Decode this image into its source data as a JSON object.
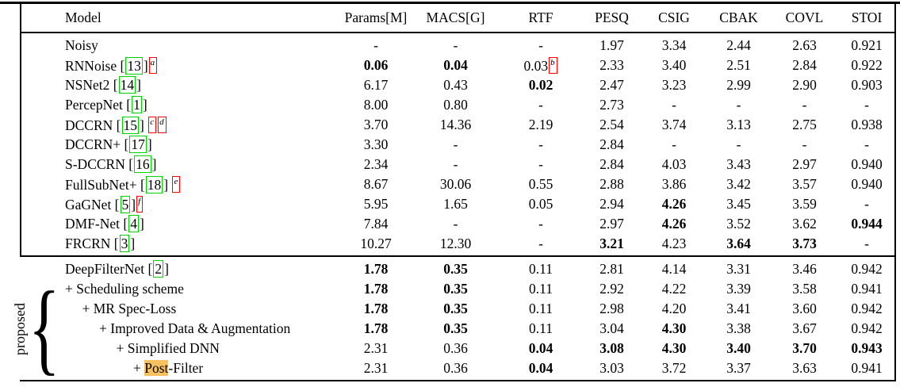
{
  "colors": {
    "citation_box": "#00d400",
    "footnote_box": "#ff0000",
    "search_highlight": "#f7c161",
    "text": "#000000",
    "background": "#ffffff"
  },
  "table": {
    "group_label": "proposed",
    "group_brace_glyph": "{",
    "columns": [
      "Model",
      "Params[M]",
      "MACS[G]",
      "RTF",
      "PESQ",
      "CSIG",
      "CBAK",
      "COVL",
      "STOI"
    ],
    "sections": [
      {
        "name": "baselines",
        "rows": [
          {
            "model": {
              "indent": 0,
              "parts": [
                {
                  "t": "Noisy"
                }
              ]
            },
            "values": [
              {
                "t": "-"
              },
              {
                "t": "-"
              },
              {
                "t": "-"
              },
              {
                "t": "1.97"
              },
              {
                "t": "3.34"
              },
              {
                "t": "2.44"
              },
              {
                "t": "2.63"
              },
              {
                "t": "0.921"
              }
            ]
          },
          {
            "model": {
              "indent": 0,
              "parts": [
                {
                  "t": "RNNoise ["
                },
                {
                  "t": "13",
                  "cite": true
                },
                {
                  "t": "]"
                },
                {
                  "t": "a",
                  "sup": true
                }
              ]
            },
            "values": [
              {
                "t": "0.06",
                "b": true
              },
              {
                "t": "0.04",
                "b": true
              },
              {
                "t": "0.03",
                "s": "b"
              },
              {
                "t": "2.33"
              },
              {
                "t": "3.40"
              },
              {
                "t": "2.51"
              },
              {
                "t": "2.84"
              },
              {
                "t": "0.922"
              }
            ]
          },
          {
            "model": {
              "indent": 0,
              "parts": [
                {
                  "t": "NSNet2 ["
                },
                {
                  "t": "14",
                  "cite": true
                },
                {
                  "t": "]"
                }
              ]
            },
            "values": [
              {
                "t": "6.17"
              },
              {
                "t": "0.43"
              },
              {
                "t": "0.02",
                "b": true
              },
              {
                "t": "2.47"
              },
              {
                "t": "3.23"
              },
              {
                "t": "2.99"
              },
              {
                "t": "2.90"
              },
              {
                "t": "0.903"
              }
            ]
          },
          {
            "model": {
              "indent": 0,
              "parts": [
                {
                  "t": "PercepNet ["
                },
                {
                  "t": "1",
                  "cite": true
                },
                {
                  "t": "]"
                }
              ]
            },
            "values": [
              {
                "t": "8.00"
              },
              {
                "t": "0.80"
              },
              {
                "t": "-"
              },
              {
                "t": "2.73"
              },
              {
                "t": "-"
              },
              {
                "t": "-"
              },
              {
                "t": "-"
              },
              {
                "t": "-"
              }
            ]
          },
          {
            "model": {
              "indent": 0,
              "parts": [
                {
                  "t": "DCCRN ["
                },
                {
                  "t": "15",
                  "cite": true
                },
                {
                  "t": "] "
                },
                {
                  "t": "c",
                  "sup": true
                },
                {
                  "t": "d",
                  "sup": true
                }
              ]
            },
            "values": [
              {
                "t": "3.70"
              },
              {
                "t": "14.36"
              },
              {
                "t": "2.19"
              },
              {
                "t": "2.54"
              },
              {
                "t": "3.74"
              },
              {
                "t": "3.13"
              },
              {
                "t": "2.75"
              },
              {
                "t": "0.938"
              }
            ]
          },
          {
            "model": {
              "indent": 0,
              "parts": [
                {
                  "t": "DCCRN+ ["
                },
                {
                  "t": "17",
                  "cite": true
                },
                {
                  "t": "]"
                }
              ]
            },
            "values": [
              {
                "t": "3.30"
              },
              {
                "t": "-"
              },
              {
                "t": "-"
              },
              {
                "t": "2.84"
              },
              {
                "t": "-"
              },
              {
                "t": "-"
              },
              {
                "t": "-"
              },
              {
                "t": "-"
              }
            ]
          },
          {
            "model": {
              "indent": 0,
              "parts": [
                {
                  "t": "S-DCCRN ["
                },
                {
                  "t": "16",
                  "cite": true
                },
                {
                  "t": "]"
                }
              ]
            },
            "values": [
              {
                "t": "2.34"
              },
              {
                "t": "-"
              },
              {
                "t": "-"
              },
              {
                "t": "2.84"
              },
              {
                "t": "4.03"
              },
              {
                "t": "3.43"
              },
              {
                "t": "2.97"
              },
              {
                "t": "0.940"
              }
            ]
          },
          {
            "model": {
              "indent": 0,
              "parts": [
                {
                  "t": "FullSubNet+ ["
                },
                {
                  "t": "18",
                  "cite": true
                },
                {
                  "t": "] "
                },
                {
                  "t": "e",
                  "sup": true
                }
              ]
            },
            "values": [
              {
                "t": "8.67"
              },
              {
                "t": "30.06"
              },
              {
                "t": "0.55"
              },
              {
                "t": "2.88"
              },
              {
                "t": "3.86"
              },
              {
                "t": "3.42"
              },
              {
                "t": "3.57"
              },
              {
                "t": "0.940"
              }
            ]
          },
          {
            "model": {
              "indent": 0,
              "parts": [
                {
                  "t": "GaGNet ["
                },
                {
                  "t": "5",
                  "cite": true
                },
                {
                  "t": "]"
                },
                {
                  "t": "f",
                  "sup": true
                }
              ]
            },
            "values": [
              {
                "t": "5.95"
              },
              {
                "t": "1.65"
              },
              {
                "t": "0.05"
              },
              {
                "t": "2.94"
              },
              {
                "t": "4.26",
                "b": true
              },
              {
                "t": "3.45"
              },
              {
                "t": "3.59"
              },
              {
                "t": "-"
              }
            ]
          },
          {
            "model": {
              "indent": 0,
              "parts": [
                {
                  "t": "DMF-Net ["
                },
                {
                  "t": "4",
                  "cite": true
                },
                {
                  "t": "]"
                }
              ]
            },
            "values": [
              {
                "t": "7.84"
              },
              {
                "t": "-"
              },
              {
                "t": "-"
              },
              {
                "t": "2.97"
              },
              {
                "t": "4.26",
                "b": true
              },
              {
                "t": "3.52"
              },
              {
                "t": "3.62"
              },
              {
                "t": "0.944",
                "b": true
              }
            ]
          },
          {
            "model": {
              "indent": 0,
              "parts": [
                {
                  "t": "FRCRN ["
                },
                {
                  "t": "3",
                  "cite": true
                },
                {
                  "t": "]"
                }
              ]
            },
            "values": [
              {
                "t": "10.27"
              },
              {
                "t": "12.30"
              },
              {
                "t": "-"
              },
              {
                "t": "3.21",
                "b": true
              },
              {
                "t": "4.23"
              },
              {
                "t": "3.64",
                "b": true
              },
              {
                "t": "3.73",
                "b": true
              },
              {
                "t": "-"
              }
            ]
          }
        ]
      },
      {
        "name": "proposed",
        "rows": [
          {
            "model": {
              "indent": 0,
              "parts": [
                {
                  "t": "DeepFilterNet ["
                },
                {
                  "t": "2",
                  "cite": true
                },
                {
                  "t": "]"
                }
              ]
            },
            "values": [
              {
                "t": "1.78",
                "b": true
              },
              {
                "t": "0.35",
                "b": true
              },
              {
                "t": "0.11"
              },
              {
                "t": "2.81"
              },
              {
                "t": "4.14"
              },
              {
                "t": "3.31"
              },
              {
                "t": "3.46"
              },
              {
                "t": "0.942"
              }
            ]
          },
          {
            "model": {
              "indent": 0,
              "parts": [
                {
                  "t": "+ Scheduling scheme"
                }
              ]
            },
            "values": [
              {
                "t": "1.78",
                "b": true
              },
              {
                "t": "0.35",
                "b": true
              },
              {
                "t": "0.11"
              },
              {
                "t": "2.92"
              },
              {
                "t": "4.22"
              },
              {
                "t": "3.39"
              },
              {
                "t": "3.58"
              },
              {
                "t": "0.941"
              }
            ]
          },
          {
            "model": {
              "indent": 1,
              "parts": [
                {
                  "t": "+ MR Spec-Loss"
                }
              ]
            },
            "values": [
              {
                "t": "1.78",
                "b": true
              },
              {
                "t": "0.35",
                "b": true
              },
              {
                "t": "0.11"
              },
              {
                "t": "2.98"
              },
              {
                "t": "4.20"
              },
              {
                "t": "3.41"
              },
              {
                "t": "3.60"
              },
              {
                "t": "0.942"
              }
            ]
          },
          {
            "model": {
              "indent": 2,
              "parts": [
                {
                  "t": "+ Improved Data & Augmentation"
                }
              ]
            },
            "values": [
              {
                "t": "1.78",
                "b": true
              },
              {
                "t": "0.35",
                "b": true
              },
              {
                "t": "0.11"
              },
              {
                "t": "3.04"
              },
              {
                "t": "4.30",
                "b": true
              },
              {
                "t": "3.38"
              },
              {
                "t": "3.67"
              },
              {
                "t": "0.942"
              }
            ]
          },
          {
            "model": {
              "indent": 3,
              "parts": [
                {
                  "t": "+ Simplified DNN"
                }
              ]
            },
            "values": [
              {
                "t": "2.31"
              },
              {
                "t": "0.36"
              },
              {
                "t": "0.04",
                "b": true
              },
              {
                "t": "3.08",
                "b": true
              },
              {
                "t": "4.30",
                "b": true
              },
              {
                "t": "3.40",
                "b": true
              },
              {
                "t": "3.70",
                "b": true
              },
              {
                "t": "0.943",
                "b": true
              }
            ]
          },
          {
            "model": {
              "indent": 4,
              "parts": [
                {
                  "t": "+ "
                },
                {
                  "t": "Post",
                  "hl": true
                },
                {
                  "t": "-Filter"
                }
              ]
            },
            "values": [
              {
                "t": "2.31"
              },
              {
                "t": "0.36"
              },
              {
                "t": "0.04",
                "b": true
              },
              {
                "t": "3.03"
              },
              {
                "t": "3.72"
              },
              {
                "t": "3.37"
              },
              {
                "t": "3.63"
              },
              {
                "t": "0.941"
              }
            ]
          }
        ]
      }
    ]
  }
}
